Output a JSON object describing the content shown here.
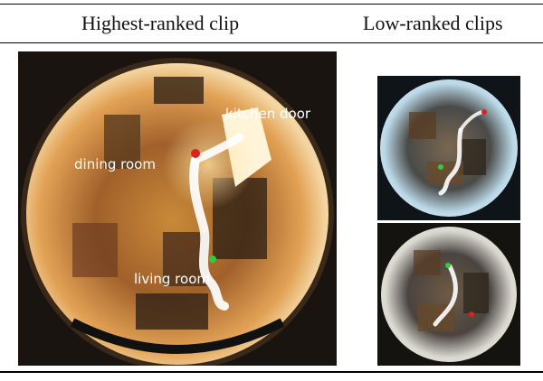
{
  "columns": {
    "left_header": "Highest-ranked clip",
    "right_header": "Low-ranked clips"
  },
  "main_panel": {
    "labels": {
      "kitchen_door": "kitchen door",
      "dining_room": "dining room",
      "living_room": "living room"
    }
  },
  "colors": {
    "start_marker": "#2ecc40",
    "end_marker": "#e0201c",
    "trajectory": "#ffffff"
  }
}
